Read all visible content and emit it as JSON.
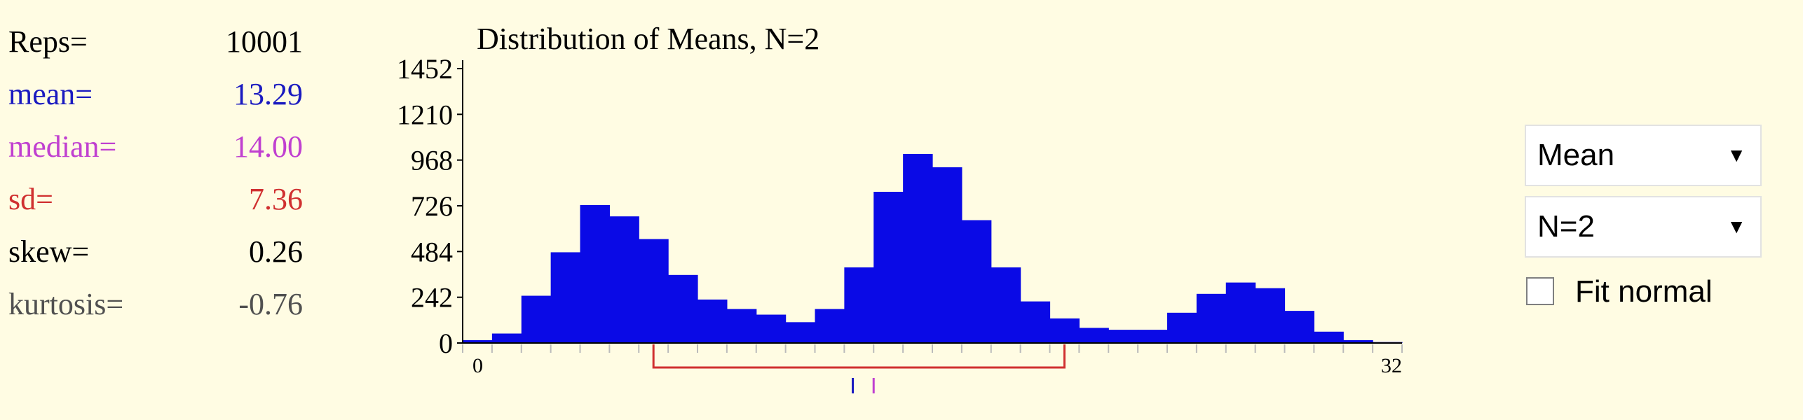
{
  "stats": [
    {
      "label": "Reps=",
      "value": "10001",
      "color": "#000000"
    },
    {
      "label": "mean=",
      "value": "13.29",
      "color": "#1A1AC0"
    },
    {
      "label": "median=",
      "value": "14.00",
      "color": "#C040D0"
    },
    {
      "label": "sd=",
      "value": "7.36",
      "color": "#D03030"
    },
    {
      "label": "skew=",
      "value": "0.26",
      "color": "#000000"
    },
    {
      "label": "kurtosis=",
      "value": "-0.76",
      "color": "#505050"
    }
  ],
  "controls": {
    "statistic": "Mean",
    "sample_size": "N=2",
    "fit_normal_label": "Fit normal",
    "fit_normal_checked": false
  },
  "colors": {
    "bars": "#0A0AE6",
    "interval": "#D03030",
    "mean_marker": "#1A1AC0",
    "median_marker": "#C040D0"
  },
  "chart_data": {
    "type": "bar",
    "title": "Distribution of Means, N=2",
    "xlabel": "",
    "ylabel": "",
    "x_tick_labels": [
      "0",
      "32"
    ],
    "y_tick_labels": [
      "1452",
      "1210",
      "968",
      "726",
      "484",
      "242",
      "0"
    ],
    "xlim": [
      0,
      32
    ],
    "ylim": [
      0,
      1452
    ],
    "bin_width": 1,
    "bins_start": [
      0,
      1,
      2,
      3,
      4,
      5,
      6,
      7,
      8,
      9,
      10,
      11,
      12,
      13,
      14,
      15,
      16,
      17,
      18,
      19,
      20,
      21,
      22,
      23,
      24,
      25,
      26,
      27,
      28,
      29,
      30,
      31
    ],
    "values": [
      15,
      50,
      250,
      480,
      730,
      670,
      550,
      360,
      230,
      180,
      150,
      110,
      180,
      400,
      800,
      1000,
      930,
      650,
      400,
      220,
      130,
      80,
      70,
      70,
      160,
      260,
      320,
      290,
      170,
      60,
      15,
      5
    ],
    "interval": [
      6.5,
      20.5
    ],
    "mean": 13.29,
    "median": 14.0,
    "grid": false,
    "legend": "none"
  }
}
